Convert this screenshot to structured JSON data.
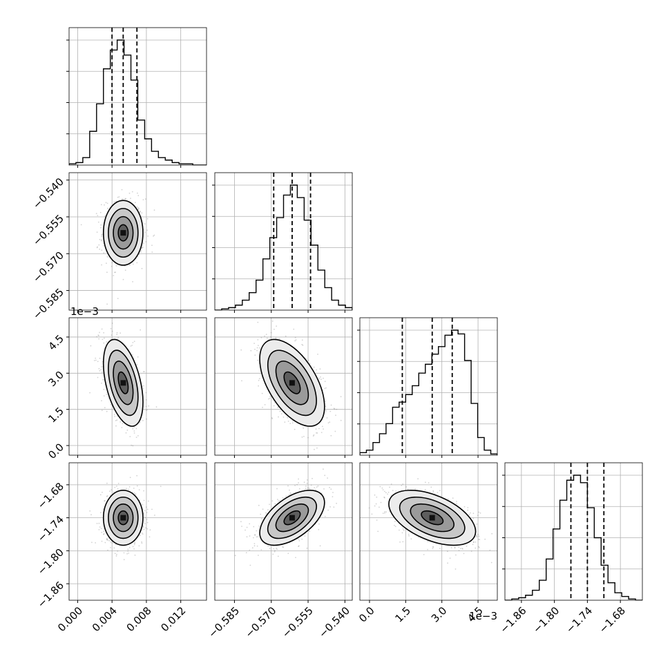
{
  "chart_data": {
    "type": "corner",
    "n_params": 4,
    "params": [
      {
        "range": [
          -0.001,
          0.015
        ],
        "ticks": [
          0.0,
          0.004,
          0.008,
          0.012
        ],
        "tick_labels": [
          "0.000",
          "0.004",
          "0.008",
          "0.012"
        ],
        "offset_label": "",
        "hist_counts": [
          1,
          2,
          6,
          27,
          49,
          77,
          92,
          100,
          88,
          68,
          36,
          21,
          11,
          6,
          4,
          2,
          1,
          1,
          0,
          0
        ],
        "quantiles": [
          0.004,
          0.0053,
          0.0069
        ],
        "mean": 0.0053,
        "std": 0.00115
      },
      {
        "range": [
          -0.593,
          -0.537
        ],
        "ticks": [
          -0.585,
          -0.57,
          -0.555,
          -0.54
        ],
        "tick_labels": [
          "−0.585",
          "−0.570",
          "−0.555",
          "−0.540"
        ],
        "offset_label": "",
        "hist_counts": [
          0,
          1,
          2,
          4,
          8,
          14,
          24,
          41,
          58,
          74,
          92,
          100,
          90,
          72,
          52,
          32,
          18,
          8,
          4,
          2
        ],
        "quantiles": [
          -0.569,
          -0.5615,
          -0.554
        ],
        "mean": -0.5615,
        "std": 0.0066
      },
      {
        "range": [
          -0.0004,
          0.0053
        ],
        "ticks": [
          0.0,
          0.0015,
          0.003,
          0.0045
        ],
        "tick_labels": [
          "0.0",
          "1.5",
          "3.0",
          "4.5"
        ],
        "offset_label": "1e−3",
        "hist_counts": [
          2,
          4,
          10,
          17,
          25,
          38,
          42,
          48,
          55,
          65,
          72,
          80,
          86,
          95,
          99,
          96,
          75,
          41,
          14,
          4,
          1
        ],
        "quantiles": [
          0.00136,
          0.0026,
          0.00343
        ],
        "mean": 0.0026,
        "std": 0.0009
      },
      {
        "range": [
          -1.89,
          -1.64
        ],
        "ticks": [
          -1.86,
          -1.8,
          -1.74,
          -1.68
        ],
        "tick_labels": [
          "−1.86",
          "−1.80",
          "−1.74",
          "−1.68"
        ],
        "offset_label": "",
        "hist_counts": [
          0,
          1,
          2,
          4,
          8,
          16,
          33,
          57,
          80,
          96,
          100,
          94,
          74,
          50,
          28,
          14,
          6,
          3,
          1,
          0
        ],
        "quantiles": [
          -1.77,
          -1.74,
          -1.71
        ],
        "mean": -1.74,
        "std": 0.025
      }
    ],
    "correlations": [
      [
        1,
        0,
        -0.45,
        0
      ],
      [
        0,
        1,
        -0.55,
        0.55
      ],
      [
        -0.45,
        -0.55,
        1,
        -0.5
      ],
      [
        0,
        0.55,
        -0.5,
        1
      ]
    ],
    "contour_levels": [
      "0.5 sigma",
      "1 sigma",
      "1.5 sigma",
      "2 sigma"
    ],
    "grid": true,
    "colors": {
      "line": "#000000",
      "grid": "#b0b0b0",
      "scatter": "#7f7f7f"
    }
  }
}
